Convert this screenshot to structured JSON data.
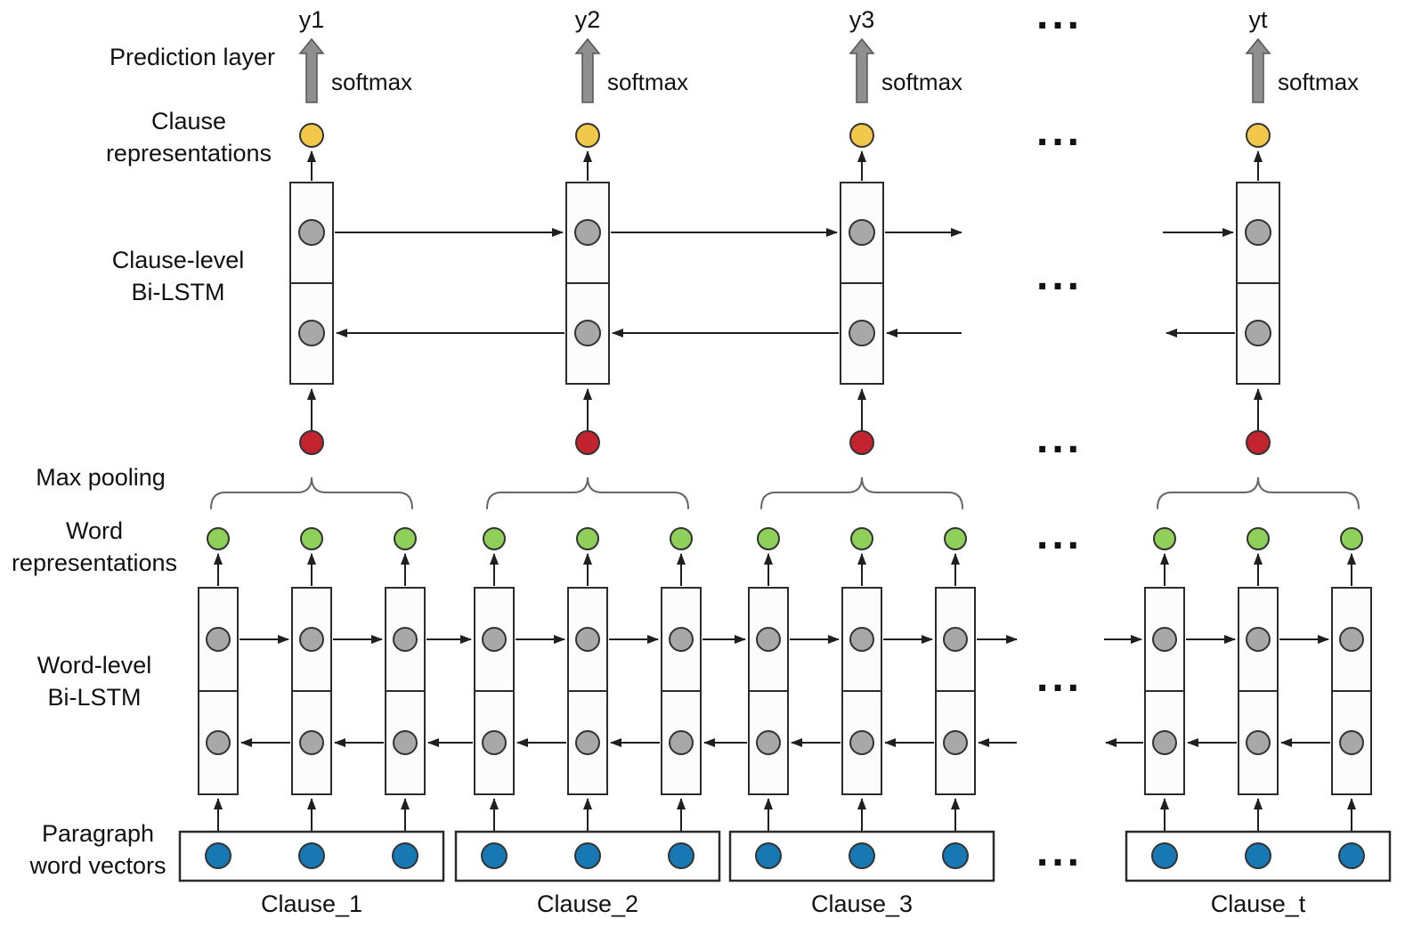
{
  "diagram": {
    "side_labels": [
      {
        "name": "prediction-layer",
        "lines": [
          "Prediction layer"
        ]
      },
      {
        "name": "clause-representations",
        "lines": [
          "Clause",
          "representations"
        ]
      },
      {
        "name": "clause-level-bilstm",
        "lines": [
          "Clause-level",
          "Bi-LSTM"
        ]
      },
      {
        "name": "max-pooling",
        "lines": [
          "Max pooling"
        ]
      },
      {
        "name": "word-representations",
        "lines": [
          "Word",
          "representations"
        ]
      },
      {
        "name": "word-level-bilstm",
        "lines": [
          "Word-level",
          "Bi-LSTM"
        ]
      },
      {
        "name": "paragraph-word-vectors",
        "lines": [
          "Paragraph",
          "word vectors"
        ]
      }
    ],
    "softmax_label": "softmax",
    "ellipsis_text": "...",
    "clauses": [
      {
        "label": "Clause_1",
        "output": "y1",
        "word_count": 3
      },
      {
        "label": "Clause_2",
        "output": "y2",
        "word_count": 3
      },
      {
        "label": "Clause_3",
        "output": "y3",
        "word_count": 3
      },
      {
        "label": "Clause_t",
        "output": "yt",
        "word_count": 3
      }
    ],
    "colors": {
      "clause_representation_node": "#f2c84b",
      "max_pooling_node": "#c2232e",
      "word_representation_node": "#8fd05a",
      "word_vector_node": "#1878b4",
      "lstm_node": "#a8a8a8",
      "box_fill": "#fcfcfc",
      "box_stroke": "#2b2b2b",
      "arrow": "#1f1f1f",
      "softmax_arrow_fill": "#8f8f8f",
      "softmax_arrow_stroke": "#555555",
      "brace": "#666666",
      "text": "#111111"
    }
  }
}
